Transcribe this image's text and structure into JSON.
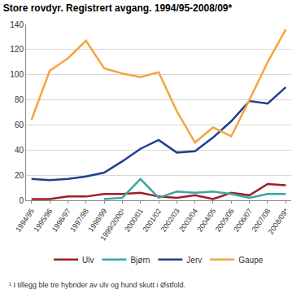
{
  "chart_data": {
    "type": "line",
    "title": "Store rovdyr. Registrert avgang. 1994/95-2008/09*",
    "annotations": [
      "¹ I tillegg ble tre hybrider av ulv og hund skutt i Østfold."
    ],
    "categories": [
      "1994/95",
      "1995/96",
      "1996/97",
      "1997/98",
      "1998/99",
      "1999/2000¹",
      "2000/01",
      "2001/02",
      "2002/03",
      "2003/04",
      "2004/05",
      "2005/06",
      "2006/07",
      "2007/08",
      "2008/09*"
    ],
    "series": [
      {
        "name": "Ulv",
        "color": "#a01c2b",
        "values": [
          1,
          1,
          3,
          3,
          5,
          5,
          6,
          3,
          2,
          4,
          1,
          6,
          4,
          13,
          12
        ]
      },
      {
        "name": "Bjørn",
        "color": "#3aa6a0",
        "values": [
          null,
          null,
          null,
          null,
          1,
          2,
          17,
          2,
          7,
          6,
          7,
          5,
          2,
          5,
          5
        ]
      },
      {
        "name": "Jerv",
        "color": "#1f3f8f",
        "values": [
          17,
          16,
          17,
          19,
          22,
          31,
          41,
          48,
          38,
          39,
          50,
          63,
          79,
          77,
          90
        ]
      },
      {
        "name": "Gaupe",
        "color": "#f5a540",
        "values": [
          64,
          103,
          113,
          127,
          105,
          101,
          98,
          102,
          71,
          46,
          58,
          51,
          80,
          110,
          136
        ]
      }
    ],
    "ylim": [
      0,
      140
    ],
    "yticks": [
      0,
      20,
      40,
      60,
      80,
      100,
      120,
      140
    ],
    "grid": true,
    "legend": "bottom"
  }
}
